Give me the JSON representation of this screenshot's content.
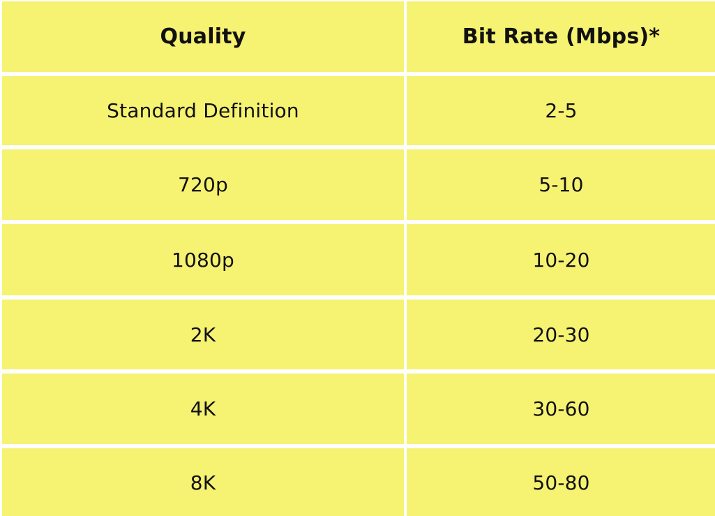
{
  "table": {
    "headers": {
      "quality": "Quality",
      "bitrate": "Bit Rate (Mbps)*"
    },
    "rows": [
      {
        "quality": "Standard Definition",
        "bitrate": "2-5"
      },
      {
        "quality": "720p",
        "bitrate": "5-10"
      },
      {
        "quality": "1080p",
        "bitrate": "10-20"
      },
      {
        "quality": "2K",
        "bitrate": "20-30"
      },
      {
        "quality": "4K",
        "bitrate": "30-60"
      },
      {
        "quality": "8K",
        "bitrate": "50-80"
      }
    ],
    "colors": {
      "cell_background": "#f6f272",
      "grid_lines": "#ffffff",
      "text": "#111111"
    }
  }
}
